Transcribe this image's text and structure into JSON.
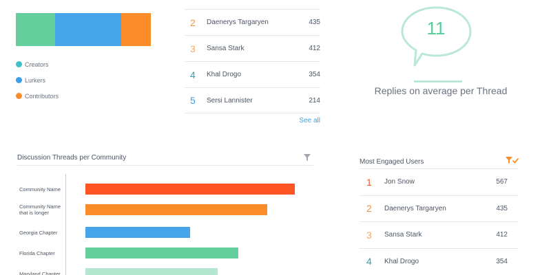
{
  "colors": {
    "green": "#66cf9e",
    "blue": "#45a5e8",
    "orange": "#fb8c2a",
    "red": "#ff5525",
    "light_green": "#b4e6d0",
    "rank_orange": "#f5923e",
    "rank_teal": "#28a7b2",
    "rank_blue": "#3b9fe6",
    "accent_green": "#5ccc9b"
  },
  "composition": {
    "segments": [
      {
        "name": "Creators",
        "fraction": 0.29
      },
      {
        "name": "Lurkers",
        "fraction": 0.49
      },
      {
        "name": "Contributors",
        "fraction": 0.22
      }
    ],
    "legend": [
      {
        "label": "Creators",
        "color": "#3ec1c9"
      },
      {
        "label": "Lurkers",
        "color": "#3b9fe6"
      },
      {
        "label": "Contributors",
        "color": "#fb8c2a"
      }
    ]
  },
  "top_users": {
    "rows": [
      {
        "rank": "2",
        "name": "Daenerys Targaryen",
        "value": "435",
        "color": "#f5923e"
      },
      {
        "rank": "3",
        "name": "Sansa Stark",
        "value": "412",
        "color": "#f7a860"
      },
      {
        "rank": "4",
        "name": "Khal Drogo",
        "value": "354",
        "color": "#28a7b2"
      },
      {
        "rank": "5",
        "name": "Sersi Lannister",
        "value": "214",
        "color": "#3b9fe6"
      }
    ],
    "see_all": "See all"
  },
  "replies": {
    "value": "11",
    "caption": "Replies on average per Thread"
  },
  "threads_chart": {
    "title": "Discussion Threads per Community",
    "filter_icon": "filter-icon"
  },
  "chart_data": {
    "type": "bar",
    "title": "Discussion Threads per Community",
    "categories": [
      "Community Name",
      "Community Name that is longer",
      "Georgia Chapter",
      "Florida Chapter",
      "Maryland Chapter"
    ],
    "values": [
      100,
      87,
      50,
      73,
      63
    ],
    "xlim": [
      0,
      100
    ],
    "bar_colors": [
      "#ff5525",
      "#fb8c2a",
      "#45a5e8",
      "#66cf9e",
      "#b4e6d0"
    ]
  },
  "engaged_users": {
    "title": "Most Engaged Users",
    "filter_icon": "filter-check-icon",
    "rows": [
      {
        "rank": "1",
        "name": "Jon Snow",
        "value": "567",
        "color": "#ff5525"
      },
      {
        "rank": "2",
        "name": "Daenerys Targaryen",
        "value": "435",
        "color": "#f5923e"
      },
      {
        "rank": "3",
        "name": "Sansa Stark",
        "value": "412",
        "color": "#f7a860"
      },
      {
        "rank": "4",
        "name": "Khal Drogo",
        "value": "354",
        "color": "#28a7b2"
      }
    ]
  }
}
